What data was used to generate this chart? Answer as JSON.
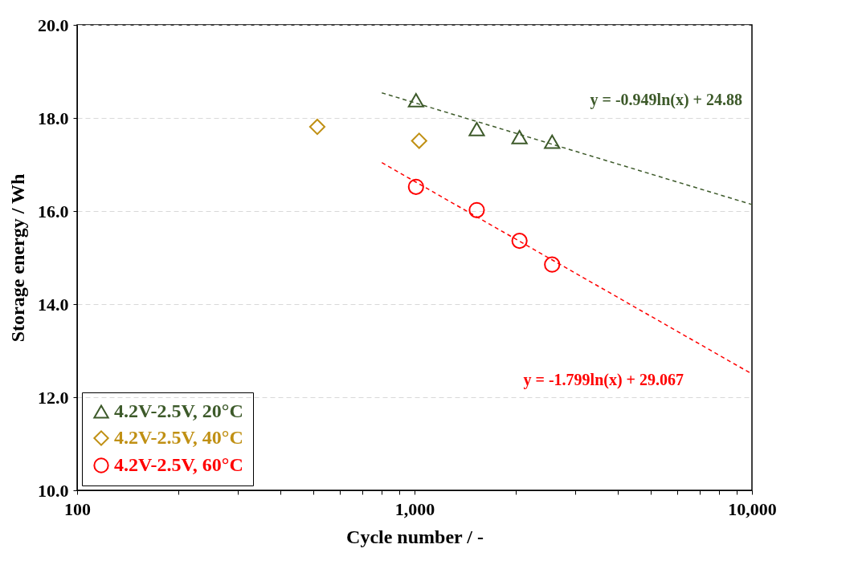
{
  "chart_data": {
    "type": "scatter",
    "xlabel": "Cycle number / -",
    "ylabel": "Storage energy / Wh",
    "log": "x",
    "xlim": [
      100,
      10000
    ],
    "ylim": [
      10,
      20
    ],
    "xticks": [
      100,
      {
        "value": 200,
        "label": null
      },
      {
        "value": 300,
        "label": null
      },
      {
        "value": 400,
        "label": null
      },
      {
        "value": 500,
        "label": null
      },
      {
        "value": 600,
        "label": null
      },
      {
        "value": 700,
        "label": null
      },
      {
        "value": 800,
        "label": null
      },
      {
        "value": 900,
        "label": null
      },
      {
        "value": 1000,
        "label": "1,000"
      },
      {
        "value": 2000,
        "label": null
      },
      {
        "value": 3000,
        "label": null
      },
      {
        "value": 4000,
        "label": null
      },
      {
        "value": 5000,
        "label": null
      },
      {
        "value": 6000,
        "label": null
      },
      {
        "value": 7000,
        "label": null
      },
      {
        "value": 8000,
        "label": null
      },
      {
        "value": 9000,
        "label": null
      },
      {
        "value": 10000,
        "label": "10,000"
      }
    ],
    "yticks": [
      {
        "value": 10,
        "label": "10.0"
      },
      {
        "value": 12,
        "label": "12.0"
      },
      {
        "value": 14,
        "label": "14.0"
      },
      {
        "value": 16,
        "label": "16.0"
      },
      {
        "value": 18,
        "label": "18.0"
      },
      {
        "value": 20,
        "label": "20.0"
      }
    ],
    "grid": "y",
    "legend": "bottom left",
    "series": [
      {
        "name": "4.2V-2.5V, 20°C",
        "color": "#3d5a2a",
        "marker": "triangle",
        "x": [
          1010,
          1529,
          2047,
          2557
        ],
        "values": [
          18.38,
          17.76,
          17.59,
          17.49
        ]
      },
      {
        "name": "4.2V-2.5V, 40°C",
        "color": "#c09014",
        "marker": "diamond",
        "x": [
          515,
          1032
        ],
        "values": [
          17.81,
          17.51
        ]
      },
      {
        "name": "4.2V-2.5V, 60°C",
        "color": "#ff0000",
        "marker": "circle",
        "x": [
          1010,
          1529,
          2047,
          2557
        ],
        "values": [
          16.52,
          16.02,
          15.36,
          14.85
        ]
      },
      {
        "type": "line",
        "color": "#3d5a2a",
        "line_style": "dashed",
        "marker": "none",
        "x": [
          800,
          10000
        ],
        "values": [
          18.54,
          16.14
        ]
      },
      {
        "type": "line",
        "color": "#ff0000",
        "line_style": "dashed",
        "marker": "none",
        "x": [
          800,
          10000
        ],
        "values": [
          17.04,
          12.5
        ]
      }
    ],
    "annotations": [
      "y = -0.949ln(x) + 24.88",
      "y = -1.799ln(x) + 29.067"
    ]
  }
}
